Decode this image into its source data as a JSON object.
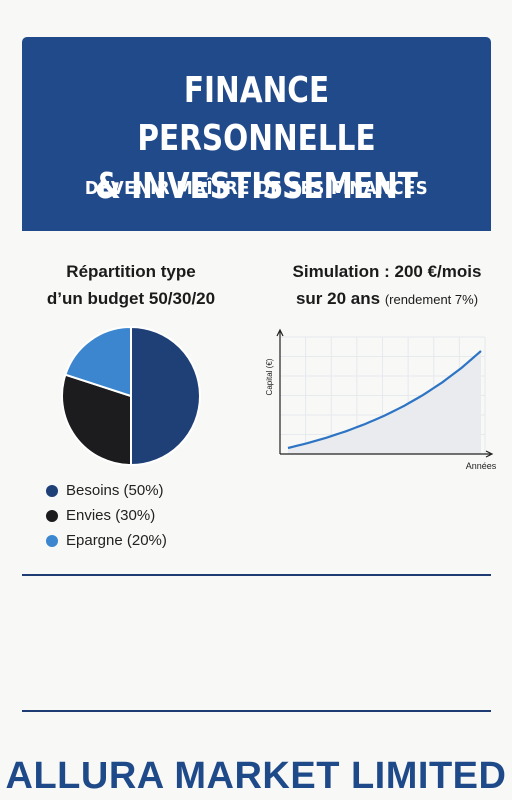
{
  "banner": {
    "title_line1": "FINANCE PERSONNELLE",
    "title_line2": "& INVESTISSEMENT",
    "subtitle": "DEVENIR MAÎTRE DE SES FINANCES"
  },
  "pie_section": {
    "title_line1": "Répartition type",
    "title_line2": "d’un budget 50/30/20"
  },
  "sim_section": {
    "title_line1": "Simulation : 200 €/mois",
    "title_line2": "sur 20 ans",
    "title_note": "(rendement 7%)"
  },
  "footer": {
    "company": "ALLURA MARKET LIMITED"
  },
  "colors": {
    "brand": "#214a8a",
    "besoins": "#1f3f77",
    "envies": "#1c1c1e",
    "epargne": "#3b86cf",
    "curve": "#2e74c4"
  },
  "chart_data": [
    {
      "type": "pie",
      "labels": [
        "Besoins (50%)",
        "Envies (30%)",
        "Epargne (20%)"
      ],
      "values": [
        50,
        30,
        20
      ],
      "colors": [
        "#1f3f77",
        "#1c1c1e",
        "#3b86cf"
      ],
      "legend_position": "bottom-left"
    },
    {
      "type": "area",
      "xlabel": "Années",
      "ylabel": "Capital (€)",
      "x": [
        0,
        2,
        4,
        6,
        8,
        10,
        12,
        14,
        16,
        18,
        20
      ],
      "y": [
        0,
        5150,
        11060,
        17840,
        25630,
        34570,
        44850,
        56650,
        70200,
        85760,
        103630
      ],
      "grid": true,
      "series": [
        {
          "values": [
            0,
            5150,
            11060,
            17840,
            25630,
            34570,
            44850,
            56650,
            70200,
            85760,
            103630
          ]
        }
      ]
    }
  ]
}
